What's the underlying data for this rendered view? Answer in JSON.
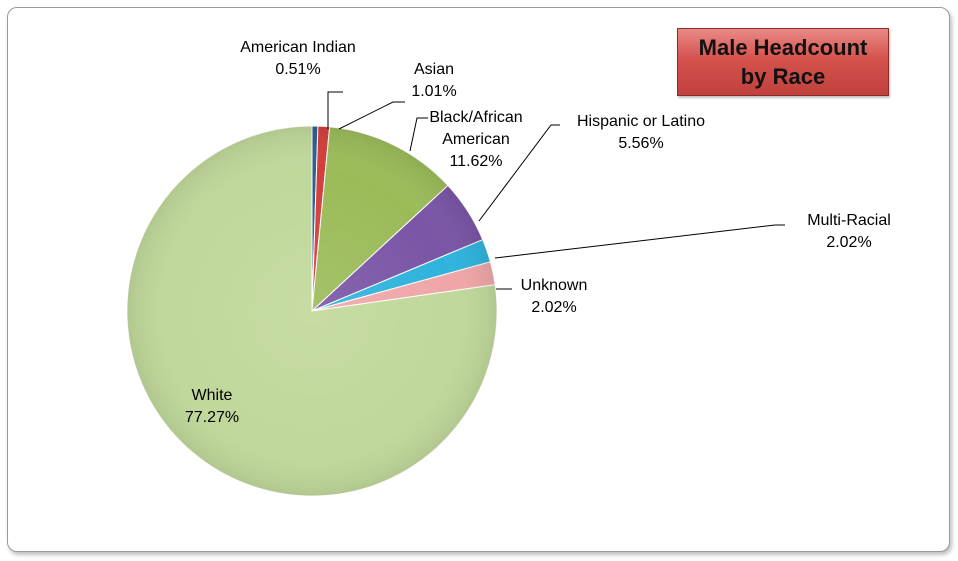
{
  "chart_data": {
    "type": "pie",
    "title_lines": [
      "Male Headcount",
      "by Race"
    ],
    "slices": [
      {
        "name": "American Indian",
        "label_lines": [
          "American Indian"
        ],
        "value": 0.51,
        "value_text": "0.51%",
        "color": "#2f5e8f"
      },
      {
        "name": "Asian",
        "label_lines": [
          "Asian"
        ],
        "value": 1.01,
        "value_text": "1.01%",
        "color": "#d23f3c"
      },
      {
        "name": "Black/African American",
        "label_lines": [
          "Black/African",
          "American"
        ],
        "value": 11.62,
        "value_text": "11.62%",
        "color": "#9bbb59"
      },
      {
        "name": "Hispanic or Latino",
        "label_lines": [
          "Hispanic or Latino"
        ],
        "value": 5.56,
        "value_text": "5.56%",
        "color": "#7a55a6"
      },
      {
        "name": "Multi-Racial",
        "label_lines": [
          "Multi-Racial"
        ],
        "value": 2.02,
        "value_text": "2.02%",
        "color": "#2fb3dd"
      },
      {
        "name": "Unknown",
        "label_lines": [
          "Unknown"
        ],
        "value": 2.02,
        "value_text": "2.02%",
        "color": "#f0a6a8"
      },
      {
        "name": "White",
        "label_lines": [
          "White"
        ],
        "value": 77.27,
        "value_text": "77.27%",
        "color": "#c0d89a"
      }
    ]
  }
}
